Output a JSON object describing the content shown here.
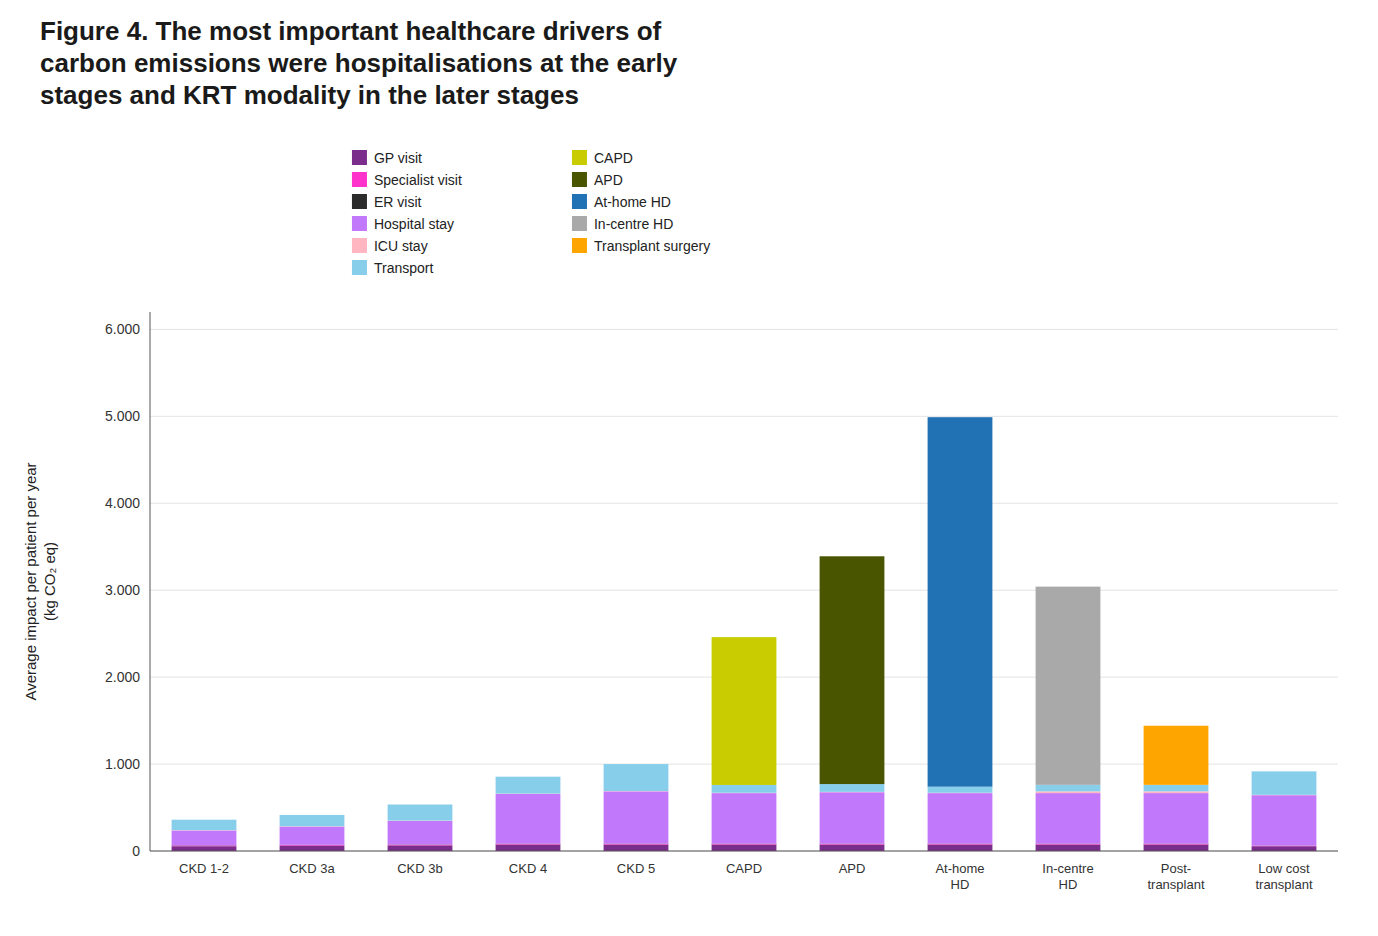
{
  "chart_data": {
    "type": "bar",
    "stacked": true,
    "grid": true,
    "legend": "top",
    "title": "Figure 4. The most important healthcare drivers of\ncarbon emissions were hospitalisations at the early\nstages and KRT modality in the later stages",
    "y_label": "Average impact per patient per year\n(kg CO₂ eq)",
    "categories": [
      "CKD 1-2",
      "CKD 3a",
      "CKD 3b",
      "CKD 4",
      "CKD 5",
      "CAPD",
      "APD",
      "At-home\nHD",
      "In-centre\nHD",
      "Post-\ntransplant",
      "Low cost\ntransplant"
    ],
    "ylim": [
      0,
      6200
    ],
    "yticks": [
      0,
      {
        "value": 1000,
        "label": "1.000"
      },
      {
        "value": 2000,
        "label": "2.000"
      },
      {
        "value": 3000,
        "label": "3.000"
      },
      {
        "value": 4000,
        "label": "4.000"
      },
      {
        "value": 5000,
        "label": "5.000"
      },
      {
        "value": 6000,
        "label": "6.000"
      }
    ],
    "series": [
      {
        "name": "GP visit",
        "color": "#7B2D8B",
        "values": [
          55,
          60,
          65,
          75,
          75,
          75,
          75,
          75,
          75,
          75,
          55
        ]
      },
      {
        "name": "Specialist visit",
        "color": "#FF33CC",
        "values": [
          8,
          8,
          8,
          8,
          8,
          8,
          8,
          8,
          8,
          8,
          5
        ]
      },
      {
        "name": "ER visit",
        "color": "#2B2B2B",
        "values": [
          3,
          3,
          3,
          3,
          3,
          3,
          3,
          3,
          3,
          3,
          2
        ]
      },
      {
        "name": "Hospital stay",
        "color": "#C278FA",
        "values": [
          170,
          210,
          270,
          570,
          600,
          580,
          590,
          580,
          580,
          580,
          580
        ]
      },
      {
        "name": "ICU stay",
        "color": "#FFB6C1",
        "values": [
          4,
          4,
          4,
          4,
          4,
          4,
          4,
          4,
          20,
          20,
          4
        ]
      },
      {
        "name": "Transport",
        "color": "#87CEEB",
        "values": [
          120,
          130,
          185,
          195,
          310,
          90,
          90,
          70,
          75,
          75,
          270
        ]
      },
      {
        "name": "CAPD",
        "color": "#C8CC00",
        "values": [
          0,
          0,
          0,
          0,
          0,
          1700,
          0,
          0,
          0,
          0,
          0
        ]
      },
      {
        "name": "APD",
        "color": "#4A5500",
        "values": [
          0,
          0,
          0,
          0,
          0,
          0,
          2620,
          0,
          0,
          0,
          0
        ]
      },
      {
        "name": "At-home HD",
        "color": "#2171B5",
        "values": [
          0,
          0,
          0,
          0,
          0,
          0,
          0,
          4250,
          0,
          0,
          0
        ]
      },
      {
        "name": "In-centre HD",
        "color": "#A9A9A9",
        "values": [
          0,
          0,
          0,
          0,
          0,
          0,
          0,
          0,
          2280,
          0,
          0
        ]
      },
      {
        "name": "Transplant surgery",
        "color": "#FFA500",
        "values": [
          0,
          0,
          0,
          0,
          0,
          0,
          0,
          0,
          0,
          680,
          0
        ]
      }
    ]
  }
}
